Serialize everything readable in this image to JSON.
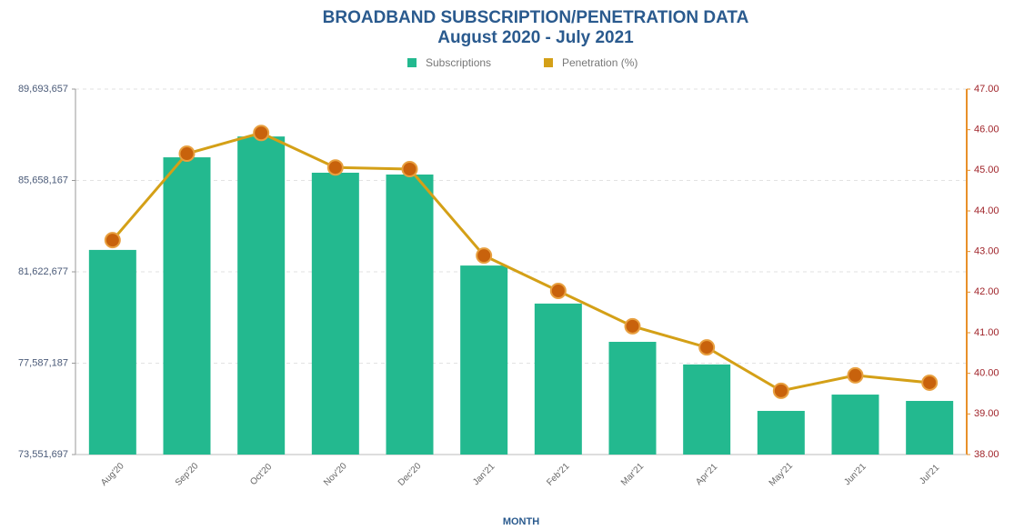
{
  "chart_data": {
    "type": "bar_line",
    "title": "BROADBAND SUBSCRIPTION/PENETRATION DATA",
    "subtitle": "August 2020 - July 2021",
    "x_label": "MONTH",
    "legend": "top",
    "grid": true,
    "categories": [
      "Aug'20",
      "Sep'20",
      "Oct'20",
      "Nov'20",
      "Dec'20",
      "Jan'21",
      "Feb'21",
      "Mar'21",
      "Apr'21",
      "May'21",
      "Jun'21",
      "Jul'21"
    ],
    "series": [
      {
        "name": "Subscriptions",
        "type": "bar",
        "axis": "y",
        "color": "#23b98f",
        "values": [
          82590000,
          86680000,
          87600000,
          86000000,
          85920000,
          81900000,
          80220000,
          78530000,
          77530000,
          75480000,
          76200000,
          75920000
        ]
      },
      {
        "name": "Penetration (%)",
        "type": "line",
        "axis": "y2",
        "color": "#d4a017",
        "marker_color": "#c8620c",
        "values": [
          43.28,
          45.41,
          45.92,
          45.07,
          45.03,
          42.9,
          42.03,
          41.16,
          40.64,
          39.57,
          39.95,
          39.77
        ]
      }
    ],
    "ylim": [
      73551697,
      89693657
    ],
    "yticks": [
      {
        "value": 73551697,
        "label": "73,551,697"
      },
      {
        "value": 77587187,
        "label": "77,587,187"
      },
      {
        "value": 81622677,
        "label": "81,622,677"
      },
      {
        "value": 85658167,
        "label": "85,658,167"
      },
      {
        "value": 89693657,
        "label": "89,693,657"
      }
    ],
    "y2lim": [
      38,
      47
    ],
    "y2ticks": [
      {
        "value": 38,
        "label": "38.00"
      },
      {
        "value": 39,
        "label": "39.00"
      },
      {
        "value": 40,
        "label": "40.00"
      },
      {
        "value": 41,
        "label": "41.00"
      },
      {
        "value": 42,
        "label": "42.00"
      },
      {
        "value": 43,
        "label": "43.00"
      },
      {
        "value": 44,
        "label": "44.00"
      },
      {
        "value": 45,
        "label": "45.00"
      },
      {
        "value": 46,
        "label": "46.00"
      },
      {
        "value": 47,
        "label": "47.00"
      }
    ]
  }
}
